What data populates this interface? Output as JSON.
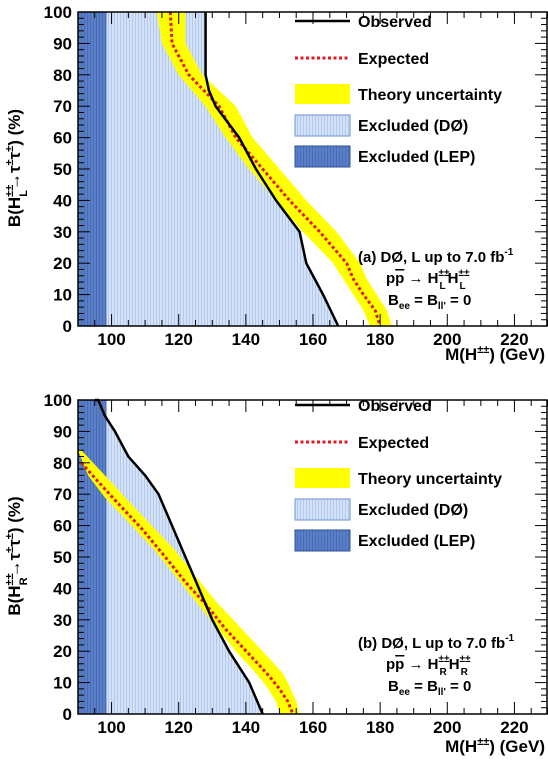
{
  "chart_data": [
    {
      "type": "line",
      "panel": "(a)",
      "xlabel_main": "M(H",
      "xlabel_sup": "±±",
      "xlabel_tail": ") (GeV)",
      "ylabel_main": "B(H",
      "ylabel_sup": "±±",
      "ylabel_sub": "L",
      "ylabel_arrow": "→τ",
      "ylabel_s1": "±",
      "ylabel_mid": "τ",
      "ylabel_s2": "±",
      "ylabel_tail": ") (%)",
      "xlim": [
        90,
        230
      ],
      "ylim": [
        0,
        100
      ],
      "xticks": [
        100,
        120,
        140,
        160,
        180,
        200,
        220
      ],
      "yticks": [
        0,
        10,
        20,
        30,
        40,
        50,
        60,
        70,
        80,
        90,
        100
      ],
      "legend_position": "top-right",
      "legend": [
        "Observed",
        "Expected",
        "Theory uncertainty",
        "Excluded (DØ)",
        "Excluded (LEP)"
      ],
      "annotation": {
        "line1": "(a) DØ, L up to 7.0 fb",
        "line1_sup": "-1",
        "line2_main": "p",
        "line2_pbar": "p",
        "line2_arrow": " → H",
        "line2_sup1": "±±",
        "line2_sub1": "L",
        "line2_h2": "H",
        "line2_sup2": "±±",
        "line2_sub2": "L",
        "line3_b": "B",
        "line3_sub1": "ee",
        "line3_eq": " = B",
        "line3_sub2": "ll'",
        "line3_tail": " = 0"
      },
      "excluded_lep_x": [
        90,
        98.5
      ],
      "series": [
        {
          "name": "Observed",
          "color": "#000000",
          "x": [
            167.5,
            163,
            158,
            156,
            149,
            143,
            138,
            131,
            129,
            128,
            128
          ],
          "y": [
            0,
            10,
            20,
            30,
            40,
            50,
            60,
            70,
            75,
            80,
            100
          ]
        },
        {
          "name": "Expected",
          "color": "#e31a1c",
          "x": [
            117.5,
            118,
            123,
            132,
            137,
            145,
            153,
            162,
            170,
            172,
            175,
            178.5,
            180
          ],
          "y": [
            100,
            90,
            80,
            70,
            60,
            50,
            40,
            30,
            20,
            15,
            10,
            5,
            0
          ]
        },
        {
          "name": "Theory uncertainty",
          "color": "#ffff00",
          "x_low": [
            113.5,
            115,
            120,
            128,
            134,
            141,
            149,
            157,
            166,
            169,
            172,
            175,
            177
          ],
          "x_high": [
            122,
            122,
            127,
            137,
            142,
            150,
            158,
            167,
            174,
            176,
            179,
            182,
            183.5
          ],
          "y": [
            100,
            90,
            80,
            70,
            60,
            50,
            40,
            30,
            20,
            15,
            10,
            5,
            0
          ]
        }
      ]
    },
    {
      "type": "line",
      "panel": "(b)",
      "xlabel_main": "M(H",
      "xlabel_sup": "±±",
      "xlabel_tail": ") (GeV)",
      "ylabel_main": "B(H",
      "ylabel_sup": "±±",
      "ylabel_sub": "R",
      "ylabel_arrow": "→τ",
      "ylabel_s1": "±",
      "ylabel_mid": "τ",
      "ylabel_s2": "±",
      "ylabel_tail": ") (%)",
      "xlim": [
        90,
        230
      ],
      "ylim": [
        0,
        100
      ],
      "xticks": [
        100,
        120,
        140,
        160,
        180,
        200,
        220
      ],
      "yticks": [
        0,
        10,
        20,
        30,
        40,
        50,
        60,
        70,
        80,
        90,
        100
      ],
      "legend_position": "top-right",
      "legend": [
        "Observed",
        "Expected",
        "Theory uncertainty",
        "Excluded (DØ)",
        "Excluded (LEP)"
      ],
      "annotation": {
        "line1": "(b) DØ, L up to 7.0 fb",
        "line1_sup": "-1",
        "line2_main": "p",
        "line2_pbar": "p",
        "line2_arrow": " → H",
        "line2_sup1": "±±",
        "line2_sub1": "R",
        "line2_h2": "H",
        "line2_sup2": "±±",
        "line2_sub2": "R",
        "line3_b": "B",
        "line3_sub1": "ee",
        "line3_eq": " = B",
        "line3_sub2": "ll'",
        "line3_tail": " = 0"
      },
      "excluded_lep_x": [
        90,
        98.5
      ],
      "series": [
        {
          "name": "Observed",
          "color": "#000000",
          "x": [
            145,
            141,
            135,
            130,
            126,
            122,
            118,
            114,
            110,
            105,
            101,
            98,
            96,
            95
          ],
          "y": [
            0,
            10,
            20,
            30,
            40,
            50,
            60,
            70,
            76,
            82,
            90,
            95,
            100,
            102
          ]
        },
        {
          "name": "Expected",
          "color": "#e31a1c",
          "x": [
            91,
            96,
            102,
            109,
            116,
            122,
            128,
            134,
            141,
            147,
            150,
            152.5,
            154
          ],
          "y": [
            80,
            74,
            67,
            59,
            50,
            42,
            35,
            27,
            19,
            12,
            8,
            4,
            0
          ]
        },
        {
          "name": "Theory uncertainty",
          "color": "#ffff00",
          "x_low": [
            90,
            93,
            98,
            106,
            113,
            119,
            125,
            131,
            137,
            143,
            146,
            149,
            150
          ],
          "x_high": [
            91,
            98,
            104,
            112,
            119,
            125,
            131,
            138,
            145,
            151,
            153,
            155,
            156
          ],
          "y": [
            84,
            76,
            69,
            60,
            52,
            44,
            36,
            28,
            20,
            13,
            9,
            4,
            0
          ]
        }
      ]
    }
  ]
}
